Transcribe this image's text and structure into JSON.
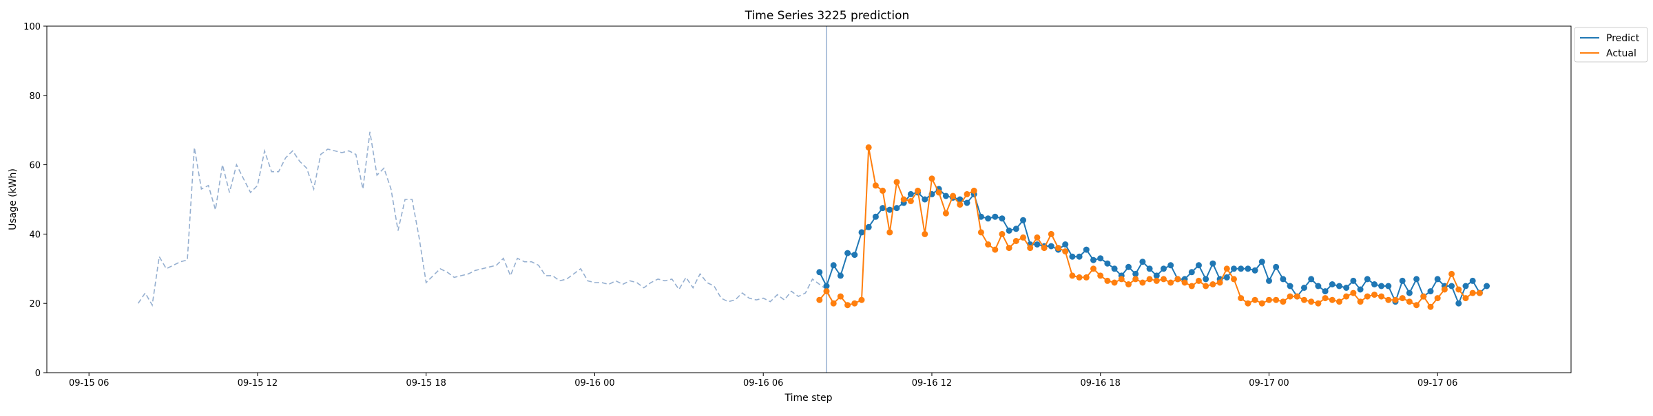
{
  "chart_data": {
    "type": "line",
    "title": "Time Series 3225 prediction",
    "xlabel": "Time step",
    "ylabel": "Usage (kWh)",
    "ylim": [
      0,
      100
    ],
    "xlim": [
      "2022-09-15 04:30",
      "2022-09-17 10:45"
    ],
    "yticks": [
      0,
      20,
      40,
      60,
      80,
      100
    ],
    "xticks": [
      {
        "t": "2022-09-15 06:00",
        "label": "09-15 06"
      },
      {
        "t": "2022-09-15 12:00",
        "label": "09-15 12"
      },
      {
        "t": "2022-09-15 18:00",
        "label": "09-15 18"
      },
      {
        "t": "2022-09-16 00:00",
        "label": "09-16 00"
      },
      {
        "t": "2022-09-16 06:00",
        "label": "09-16 06"
      },
      {
        "t": "2022-09-16 12:00",
        "label": "09-16 12"
      },
      {
        "t": "2022-09-16 18:00",
        "label": "09-16 18"
      },
      {
        "t": "2022-09-17 00:00",
        "label": "09-17 00"
      },
      {
        "t": "2022-09-17 06:00",
        "label": "09-17 06"
      }
    ],
    "grid": false,
    "legend_position": "outside-top-right",
    "forecast_start": "2022-09-16 08:15",
    "history": {
      "start": "2022-09-15 07:45",
      "interval_minutes": 15,
      "color": "#95afd0",
      "style": "dashed",
      "values": [
        20,
        23,
        19.5,
        33.5,
        30,
        31,
        32,
        32.5,
        65,
        53,
        54,
        47,
        60,
        52,
        60,
        56,
        52,
        54,
        64,
        58,
        58,
        62,
        64,
        61,
        59,
        53,
        63,
        64.5,
        64,
        63.5,
        64,
        63,
        53,
        69.5,
        57,
        59,
        53,
        41,
        50,
        50,
        39,
        26,
        28,
        30,
        29,
        27.5,
        28,
        28.5,
        29.5,
        30,
        30.5,
        31,
        33,
        28,
        33,
        32,
        32,
        31,
        28,
        28,
        26.5,
        27,
        28.5,
        30,
        26.5,
        26,
        26,
        25.5,
        26.5,
        25.5,
        26.5,
        26,
        24.5,
        26,
        27,
        26.5,
        27,
        24,
        27.5,
        24.5,
        28.5,
        26,
        25,
        21.5,
        20.5,
        21,
        23,
        21.5,
        21,
        21.5,
        20.5,
        22.5,
        21,
        23.5,
        22,
        23,
        27,
        25.5,
        24,
        20
      ]
    },
    "series": [
      {
        "name": "Predict",
        "color": "#1f77b4",
        "start": "2022-09-16 08:00",
        "interval_minutes": 15,
        "values": [
          29,
          25,
          31,
          28,
          34.5,
          34,
          40.5,
          42,
          45,
          47.5,
          47,
          47.5,
          49,
          51.5,
          52,
          50,
          51.5,
          53,
          51,
          50.5,
          50,
          49,
          51.5,
          45,
          44.5,
          45,
          44.5,
          41,
          41.5,
          44,
          37,
          37,
          36.5,
          36.5,
          35.5,
          37,
          33.5,
          33.5,
          35.5,
          32.5,
          33,
          31.5,
          30,
          28,
          30.5,
          28.5,
          32,
          30,
          28,
          30,
          31,
          27,
          27,
          29,
          31,
          27,
          31.5,
          27,
          27.5,
          30,
          30,
          30,
          29.5,
          32,
          26.5,
          30.5,
          27,
          25,
          22,
          24.5,
          27,
          25,
          23.5,
          25.5,
          25,
          24.5,
          26.5,
          24,
          27,
          25.5,
          25,
          25,
          20.5,
          26.5,
          23,
          27,
          22,
          23.5,
          27,
          25,
          25,
          20,
          25,
          26.5,
          23,
          25
        ]
      },
      {
        "name": "Actual",
        "color": "#ff7f0e",
        "start": "2022-09-16 08:00",
        "interval_minutes": 15,
        "values": [
          21,
          23.5,
          20,
          22,
          19.5,
          20,
          21,
          65,
          54,
          52.5,
          40.5,
          55,
          50,
          49.5,
          52.5,
          40,
          56,
          52,
          46,
          51,
          48.5,
          51.5,
          52.5,
          40.5,
          37,
          35.5,
          40,
          36,
          38,
          39,
          36,
          39,
          36,
          40,
          36,
          35,
          28,
          27.5,
          27.5,
          30,
          28,
          26.5,
          26,
          27,
          25.5,
          27,
          26,
          27,
          26.5,
          27,
          26,
          27,
          26,
          25,
          26.5,
          25,
          25.5,
          26,
          30,
          27,
          21.5,
          20,
          21,
          20,
          21,
          21,
          20.5,
          22,
          22,
          21,
          20.5,
          20,
          21.5,
          21,
          20.5,
          22,
          23,
          20.5,
          22,
          22.5,
          22,
          21,
          21,
          21.5,
          20.5,
          19.5,
          22,
          19,
          21.5,
          24,
          28.5,
          24,
          21.5,
          23,
          23
        ]
      }
    ]
  }
}
